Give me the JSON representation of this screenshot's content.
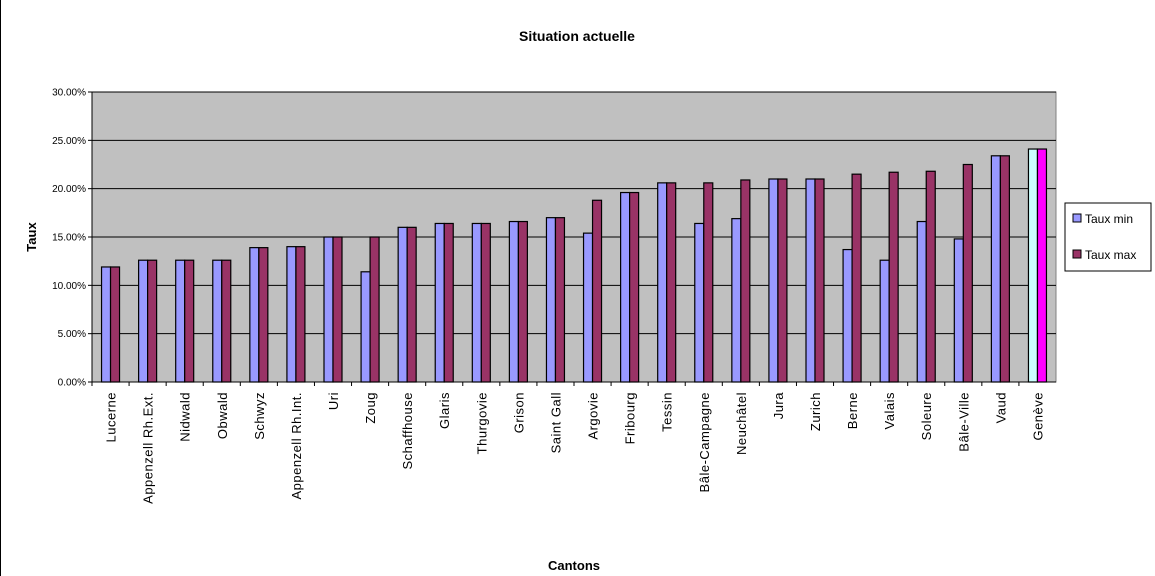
{
  "chart_data": {
    "type": "bar",
    "title": "Situation actuelle",
    "xlabel": "Cantons",
    "ylabel": "Taux",
    "ylim": [
      0,
      30
    ],
    "yticks": [
      "0.00%",
      "5.00%",
      "10.00%",
      "15.00%",
      "20.00%",
      "25.00%",
      "30.00%"
    ],
    "grid": true,
    "legend_position": "right",
    "categories": [
      "Lucerne",
      "Appenzell Rh.Ext.",
      "Nidwald",
      "Obwald",
      "Schwyz",
      "Appenzell Rh.Int.",
      "Uri",
      "Zoug",
      "Schaffhouse",
      "Glaris",
      "Thurgovie",
      "Grison",
      "Saint Gall",
      "Argovie",
      "Fribourg",
      "Tessin",
      "Bâle-Campagne",
      "Neuchâtel",
      "Jura",
      "Zurich",
      "Berne",
      "Valais",
      "Soleure",
      "Bâle-Ville",
      "Vaud",
      "Genève"
    ],
    "series": [
      {
        "name": "Taux min",
        "color": "#9999ff",
        "values": [
          11.9,
          12.6,
          12.6,
          12.6,
          13.9,
          14.0,
          15.0,
          11.4,
          16.0,
          16.4,
          16.4,
          16.6,
          17.0,
          15.4,
          19.6,
          20.6,
          16.4,
          16.9,
          21.0,
          21.0,
          13.7,
          12.6,
          16.6,
          14.8,
          23.4,
          24.1
        ]
      },
      {
        "name": "Taux max",
        "color": "#993366",
        "values": [
          11.9,
          12.6,
          12.6,
          12.6,
          13.9,
          14.0,
          15.0,
          15.0,
          16.0,
          16.4,
          16.4,
          16.6,
          17.0,
          18.8,
          19.6,
          20.6,
          20.6,
          20.9,
          21.0,
          21.0,
          21.5,
          21.7,
          21.8,
          22.5,
          23.4,
          24.1
        ]
      }
    ],
    "highlight": {
      "category": "Genève",
      "min_color": "#ccffff",
      "max_color": "#ff00ff"
    },
    "plot_background": "#c0c0c0"
  }
}
